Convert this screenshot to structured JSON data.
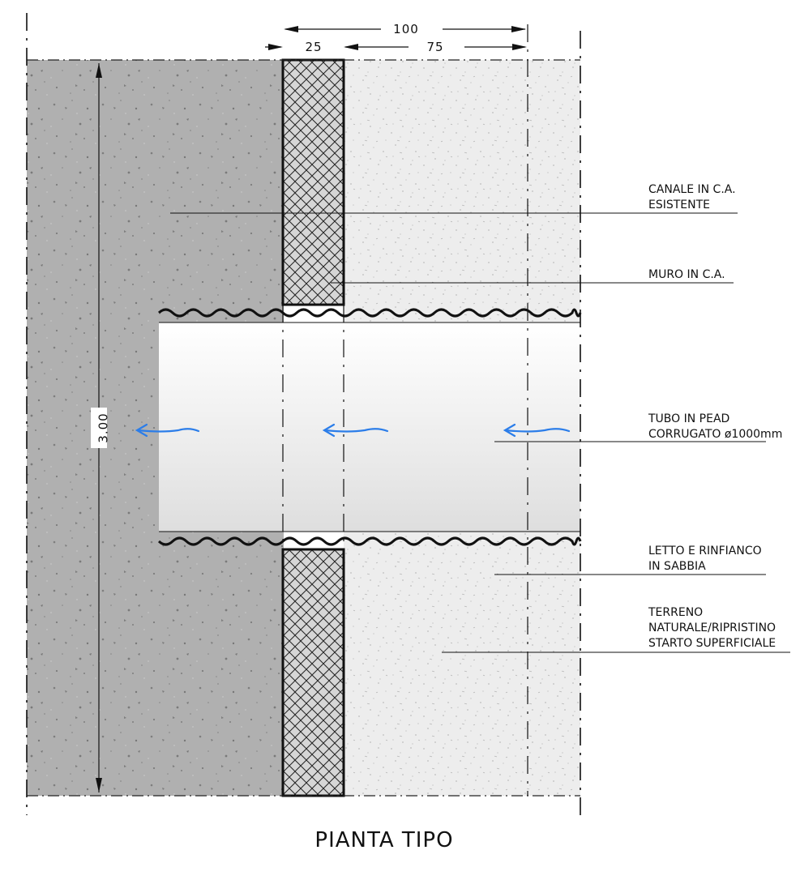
{
  "dimensions": {
    "total_width": "100",
    "wall_thickness": "25",
    "right_part": "75",
    "length": "3.00"
  },
  "labels": {
    "canale_line1": "CANALE IN C.A.",
    "canale_line2": "ESISTENTE",
    "muro": "MURO IN C.A.",
    "tubo_line1": "TUBO IN PEAD",
    "tubo_line2": "CORRUGATO ø1000mm",
    "letto_line1": "LETTO E RINFIANCO",
    "letto_line2": "IN SABBIA",
    "terreno_line1": "TERRENO",
    "terreno_line2": "NATURALE/RIPRISTINO",
    "terreno_line3": "STARTO SUPERFICIALE"
  },
  "title": "PIANTA TIPO",
  "colors": {
    "canal_fill": "#b0b0b0",
    "soil_fill": "#ededed",
    "pipe_fill": "#f4f4f4",
    "flow_arrow": "#2b7de9",
    "line": "#111111"
  }
}
